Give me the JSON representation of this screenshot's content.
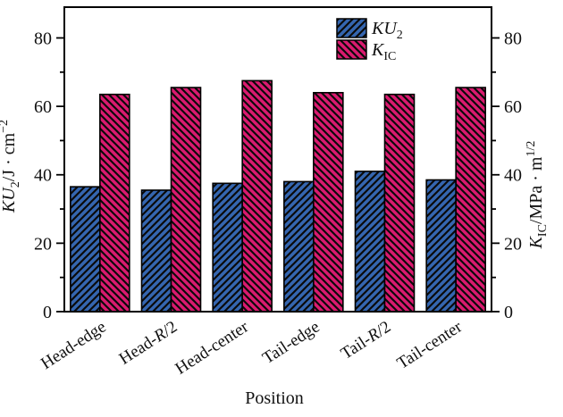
{
  "figure": {
    "xlabel": "Position",
    "ylabel_left": "KU2/J · cm^-2",
    "ylabel_right": "KIC/MPa · m^1/2",
    "ylabel_left_parts": [
      {
        "t": "KU",
        "i": true
      },
      {
        "t": "2",
        "v": "sub"
      },
      {
        "t": "/J · cm"
      },
      {
        "t": "−2",
        "v": "sup"
      }
    ],
    "ylabel_right_parts": [
      {
        "t": "K",
        "i": true
      },
      {
        "t": "IC",
        "v": "sub"
      },
      {
        "t": "/MPa · m"
      },
      {
        "t": "1/2",
        "v": "sup"
      }
    ],
    "legend": [
      {
        "label": "KU2",
        "parts": [
          {
            "t": "KU",
            "i": true
          },
          {
            "t": "2",
            "v": "sub"
          }
        ]
      },
      {
        "label": "KIC",
        "parts": [
          {
            "t": "K",
            "i": true
          },
          {
            "t": "IC",
            "v": "sub"
          }
        ]
      }
    ]
  },
  "colors": {
    "ku2_bar": "#3566B0",
    "kic_bar": "#DA1A6F",
    "hatch_line": "#0a0a0a",
    "axis": "#000000",
    "text": "#111111",
    "background": "#ffffff"
  },
  "chart_data": {
    "type": "bar",
    "title": "",
    "xlabel": "Position",
    "ylabel_left": "KU2/J · cm^-2",
    "ylabel_right": "KIC/MPa · m^1/2",
    "categories": [
      "Head-edge",
      "Head-R/2",
      "Head-center",
      "Tail-edge",
      "Tail-R/2",
      "Tail-center"
    ],
    "series": [
      {
        "name": "KU2",
        "axis": "left",
        "values": [
          36.5,
          35.5,
          37.5,
          38.0,
          41.0,
          38.5
        ],
        "color": "#3566B0",
        "hatch": "/"
      },
      {
        "name": "KIC",
        "axis": "right",
        "values": [
          63.5,
          65.5,
          67.5,
          64.0,
          63.5,
          65.5
        ],
        "color": "#DA1A6F",
        "hatch": "\\"
      }
    ],
    "ylim": [
      0,
      89
    ],
    "yticks_major": [
      0,
      20,
      40,
      60,
      80
    ],
    "yticks_minor": [
      10,
      30,
      50,
      70
    ],
    "grid": false,
    "legend_position": "inside upper, right of center",
    "x_tick_label_rotation_deg": -33
  }
}
